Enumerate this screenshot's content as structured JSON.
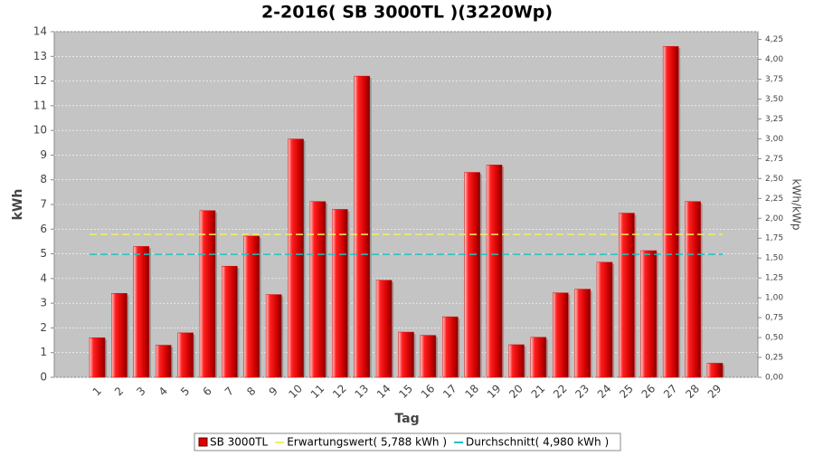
{
  "chart_data": {
    "type": "bar",
    "title": "2-2016( SB 3000TL )(3220Wp)",
    "x_label": "Tag",
    "y_label": "kWh",
    "y2_label": "kWh/kWp",
    "categories": [
      "1",
      "2",
      "3",
      "4",
      "5",
      "6",
      "7",
      "8",
      "9",
      "10",
      "11",
      "12",
      "13",
      "14",
      "15",
      "16",
      "17",
      "18",
      "19",
      "20",
      "21",
      "22",
      "23",
      "24",
      "25",
      "26",
      "27",
      "28",
      "29"
    ],
    "series": [
      {
        "name": "SB 3000TL",
        "color": "#e00000",
        "values": [
          1.6,
          3.4,
          5.3,
          1.3,
          1.8,
          6.75,
          4.5,
          5.72,
          3.35,
          9.65,
          7.12,
          6.8,
          12.2,
          3.93,
          1.83,
          1.7,
          2.45,
          8.3,
          8.6,
          1.32,
          1.62,
          3.42,
          3.57,
          4.66,
          6.65,
          5.13,
          13.4,
          7.12,
          0.57
        ]
      }
    ],
    "reference_lines": [
      {
        "name": "Erwartungswert( 5,788 kWh )",
        "color": "#f0f060",
        "value": 5.788
      },
      {
        "name": "Durchschnitt( 4,980 kWh )",
        "color": "#20c0c0",
        "value": 4.98
      }
    ],
    "ylim": [
      0,
      14
    ],
    "yticks": [
      0,
      1,
      2,
      3,
      4,
      5,
      6,
      7,
      8,
      9,
      10,
      11,
      12,
      13,
      14
    ],
    "y2lim": [
      0,
      4.3478
    ],
    "y2ticks": [
      {
        "value": 0,
        "label": "0,00"
      },
      {
        "value": 0.25,
        "label": "0,25"
      },
      {
        "value": 0.5,
        "label": "0,50"
      },
      {
        "value": 0.75,
        "label": "0,75"
      },
      {
        "value": 1,
        "label": "1,00"
      },
      {
        "value": 1.25,
        "label": "1,25"
      },
      {
        "value": 1.5,
        "label": "1,50"
      },
      {
        "value": 1.75,
        "label": "1,75"
      },
      {
        "value": 2,
        "label": "2,00"
      },
      {
        "value": 2.25,
        "label": "2,25"
      },
      {
        "value": 2.5,
        "label": "2,50"
      },
      {
        "value": 2.75,
        "label": "2,75"
      },
      {
        "value": 3,
        "label": "3,00"
      },
      {
        "value": 3.25,
        "label": "3,25"
      },
      {
        "value": 3.5,
        "label": "3,50"
      },
      {
        "value": 3.75,
        "label": "3,75"
      },
      {
        "value": 4,
        "label": "4,00"
      },
      {
        "value": 4.25,
        "label": "4,25"
      }
    ],
    "grid": true
  }
}
